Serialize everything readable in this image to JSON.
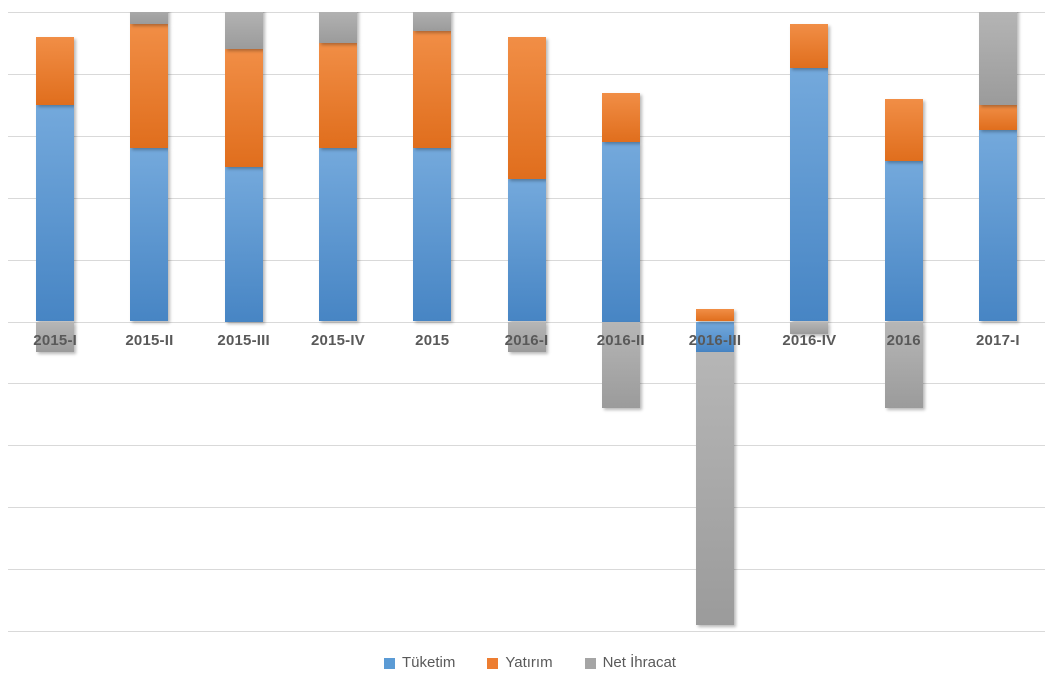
{
  "chart_data": {
    "type": "bar",
    "stacked": true,
    "title": "",
    "categories": [
      "2015-I",
      "2015-II",
      "2015-III",
      "2015-IV",
      "2015",
      "2016-I",
      "2016-II",
      "2016-III",
      "2016-IV",
      "2016",
      "2017-I"
    ],
    "series": [
      {
        "name": "Tüketim",
        "color": "#5B9BD5",
        "color_light": "#74A9DC",
        "color_dark": "#4785C4",
        "values": [
          3.5,
          2.8,
          2.5,
          2.8,
          2.8,
          2.3,
          2.9,
          -0.5,
          4.1,
          2.6,
          3.1
        ]
      },
      {
        "name": "Yatırım",
        "color": "#ED7D31",
        "color_light": "#F18E46",
        "color_dark": "#E06E1D",
        "values": [
          1.1,
          2.0,
          1.9,
          1.7,
          1.9,
          2.3,
          0.8,
          0.2,
          0.7,
          1.0,
          0.4
        ]
      },
      {
        "name": "Net İhracat",
        "color": "#A5A5A5",
        "color_light": "#B6B6B6",
        "color_dark": "#9B9B9B",
        "values": [
          -0.5,
          0.4,
          0.7,
          0.6,
          0.4,
          -0.5,
          -1.4,
          -4.4,
          -0.2,
          -1.4,
          1.6
        ]
      }
    ],
    "ylim": [
      -5,
      5
    ],
    "y_gridline_step": 1,
    "y_axis_labels_visible": false,
    "grid": "horizontal",
    "gridline_color": "#D9D9D9",
    "axis_label_color": "#595959",
    "legend_position": "bottom",
    "bars_clipped_at_axis_max": [
      "2015-II",
      "2015-III",
      "2015-IV",
      "2015",
      "2017-I"
    ]
  }
}
